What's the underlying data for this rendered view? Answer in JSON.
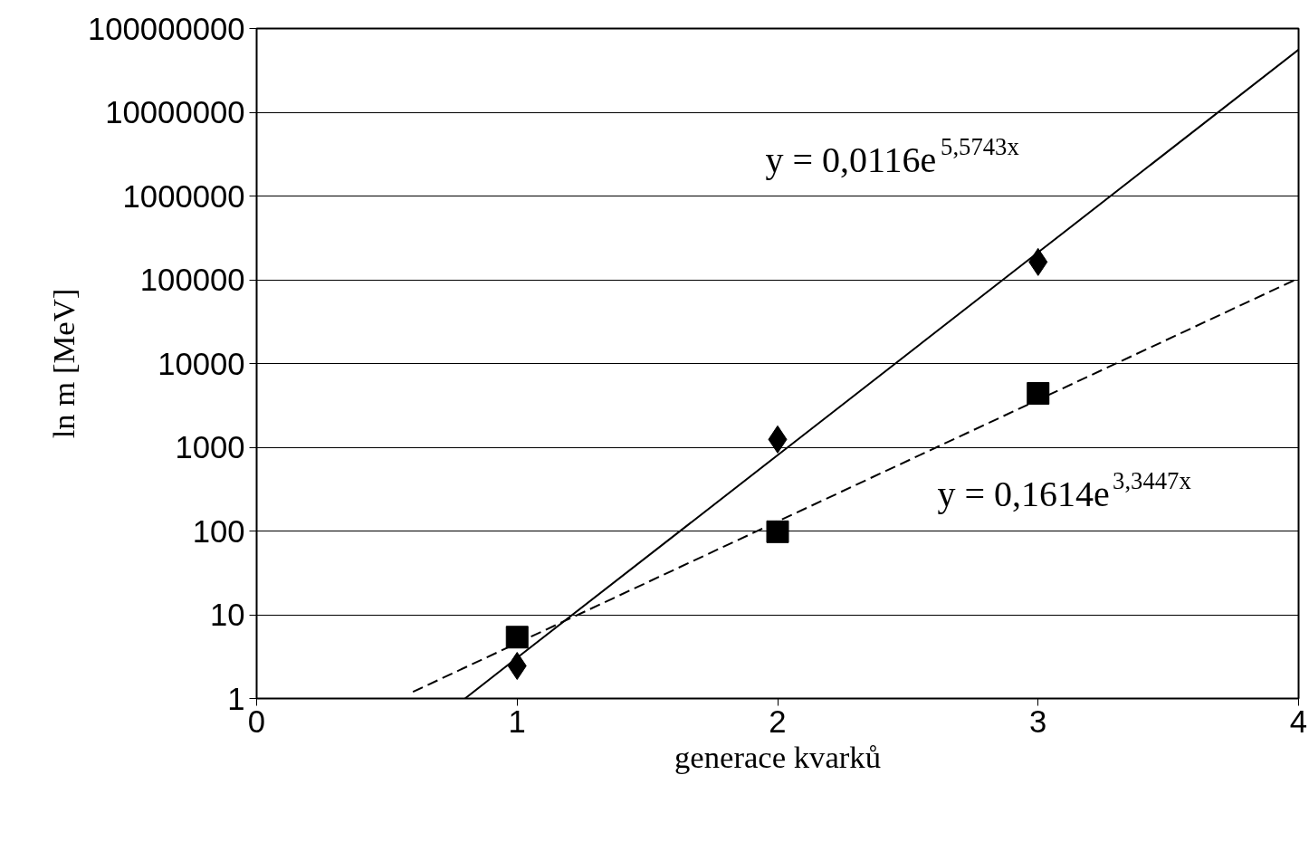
{
  "chart_data": {
    "type": "scatter",
    "xlabel": "generace kvarků",
    "ylabel": "ln m [MeV]",
    "log": "y",
    "grid": "y",
    "xlim": [
      0,
      4
    ],
    "xticks": [
      0,
      1,
      2,
      3,
      4
    ],
    "ylim": [
      1,
      100000000
    ],
    "yticks": [
      1,
      10,
      100,
      1000,
      10000,
      100000,
      1000000,
      10000000,
      100000000
    ],
    "series": [
      {
        "type": "scatter",
        "marker": "diamond",
        "color": "#000000",
        "x": [
          1,
          2,
          3
        ],
        "values": [
          2.45,
          1240,
          163000
        ]
      },
      {
        "type": "scatter",
        "marker": "square",
        "color": "#000000",
        "x": [
          1,
          2,
          3
        ],
        "values": [
          5.4,
          98,
          4400
        ]
      },
      {
        "type": "line",
        "line_style": "solid",
        "color": "#000000",
        "x": [
          0.8,
          1,
          2,
          3,
          4
        ],
        "values": [
          1.0,
          3.06,
          805,
          212000,
          56000000
        ]
      },
      {
        "type": "line",
        "line_style": "dashed",
        "color": "#000000",
        "x": [
          0.6,
          1,
          2,
          3,
          4
        ],
        "values": [
          1.2,
          4.58,
          130,
          3680,
          104300
        ]
      }
    ],
    "annotations": [
      "y = 0,0116e$^{5,5743x}$",
      "y = 0,1614e$^{3,3447x}$"
    ]
  }
}
